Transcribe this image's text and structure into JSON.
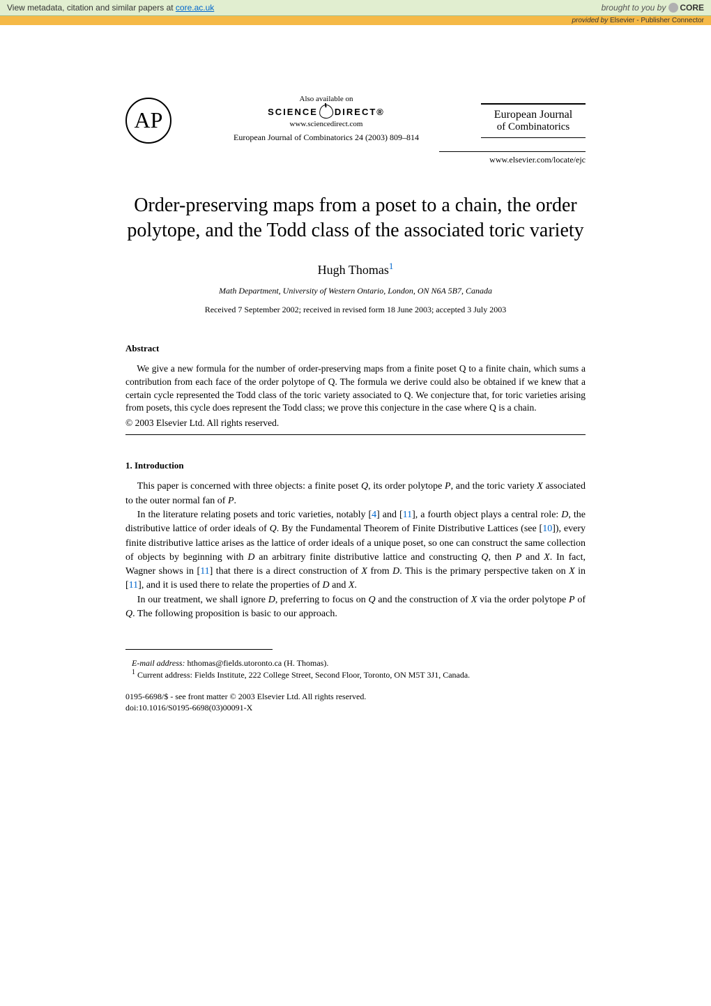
{
  "top_banner": {
    "left_prefix": "View metadata, citation and similar papers at ",
    "left_link": "core.ac.uk",
    "right_prefix": "brought to you by",
    "core_label": "CORE"
  },
  "sub_banner": {
    "prefix": "provided by ",
    "provider": "Elsevier - Publisher Connector"
  },
  "header": {
    "ap_logo": "AP",
    "also_available": "Also available on",
    "science_label_left": "SCIENCE",
    "science_label_right": "DIRECT®",
    "sd_url": "www.sciencedirect.com",
    "journal_line1": "European Journal",
    "journal_line2": "of Combinatorics",
    "citation": "European Journal of Combinatorics 24 (2003) 809–814",
    "locate_url": "www.elsevier.com/locate/ejc"
  },
  "title": "Order-preserving maps from a poset to a chain, the order polytope, and the Todd class of the associated toric variety",
  "author": {
    "name": "Hugh Thomas",
    "sup": "1"
  },
  "affiliation": "Math Department, University of Western Ontario, London, ON N6A 5B7, Canada",
  "dates": "Received 7 September 2002; received in revised form 18 June 2003; accepted 3 July 2003",
  "abstract": {
    "heading": "Abstract",
    "text": "We give a new formula for the number of order-preserving maps from a finite poset Q to a finite chain, which sums a contribution from each face of the order polytope of Q. The formula we derive could also be obtained if we knew that a certain cycle represented the Todd class of the toric variety associated to Q. We conjecture that, for toric varieties arising from posets, this cycle does represent the Todd class; we prove this conjecture in the case where Q is a chain.",
    "copyright": "© 2003 Elsevier Ltd. All rights reserved."
  },
  "introduction": {
    "heading": "1.  Introduction",
    "p1_a": "This paper is concerned with three objects: a finite poset ",
    "p1_b": ", its order polytope ",
    "p1_c": ", and the toric variety ",
    "p1_d": " associated to the outer normal fan of ",
    "p1_e": ".",
    "p2_a": "In the literature relating posets and toric varieties, notably [",
    "ref4": "4",
    "p2_b": "] and [",
    "ref11": "11",
    "p2_c": "], a fourth object plays a central role: ",
    "p2_d": ", the distributive lattice of order ideals of ",
    "p2_e": ". By the Fundamental Theorem of Finite Distributive Lattices (see [",
    "ref10": "10",
    "p2_f": "]), every finite distributive lattice arises as the lattice of order ideals of a unique poset, so one can construct the same collection of objects by beginning with ",
    "p2_g": " an arbitrary finite distributive lattice and constructing ",
    "p2_h": ", then ",
    "p2_i": " and ",
    "p2_j": ". In fact, Wagner shows in [",
    "p2_k": "] that there is a direct construction of ",
    "p2_l": " from ",
    "p2_m": ". This is the primary perspective taken on ",
    "p2_n": " in [",
    "p2_o": "], and it is used there to relate the properties of ",
    "p2_p": " and ",
    "p2_q": ".",
    "p3_a": "In our treatment, we shall ignore ",
    "p3_b": ", preferring to focus on ",
    "p3_c": " and the construction of ",
    "p3_d": " via the order polytope ",
    "p3_e": " of ",
    "p3_f": ". The following proposition is basic to our approach."
  },
  "footnotes": {
    "email_label": "E-mail address:",
    "email": " hthomas@fields.utoronto.ca (H. Thomas).",
    "fn1_num": "1",
    "fn1_text": " Current address: Fields Institute, 222 College Street, Second Floor, Toronto, ON M5T 3J1, Canada."
  },
  "footer": {
    "issn": "0195-6698/$ - see front matter © 2003 Elsevier Ltd. All rights reserved.",
    "doi": "doi:10.1016/S0195-6698(03)00091-X"
  },
  "symbols": {
    "Q": "Q",
    "P": "P",
    "X": "X",
    "D": "D"
  }
}
